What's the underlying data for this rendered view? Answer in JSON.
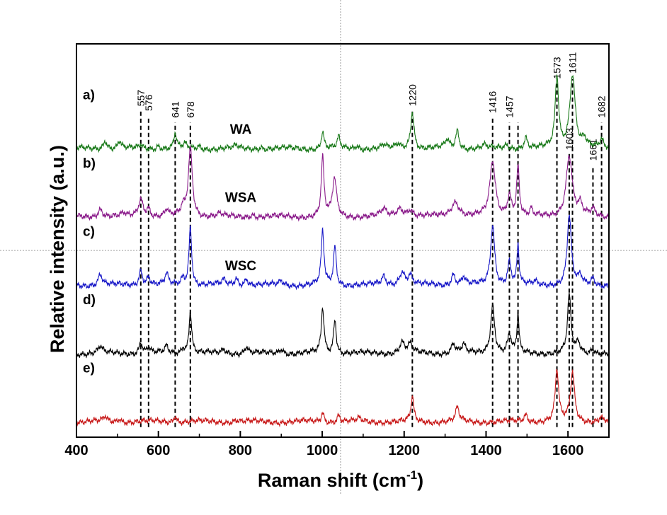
{
  "chart_data": {
    "type": "line",
    "xlabel": "Raman shift (cm",
    "xlabel_sup": "-1",
    "xlabel_end": ")",
    "ylabel": "Relative intensity (a.u.)",
    "xlim": [
      400,
      1700
    ],
    "x_ticks": [
      400,
      600,
      800,
      1000,
      1200,
      1400,
      1600
    ],
    "series": [
      {
        "name": "a)",
        "sample": "WA",
        "color": "#1a7a1a",
        "offset": 4.0,
        "peaks": [
          [
            470,
            0.13,
            5
          ],
          [
            505,
            0.11,
            5
          ],
          [
            557,
            0.05,
            5
          ],
          [
            600,
            0.05,
            5
          ],
          [
            641,
            0.22,
            4
          ],
          [
            665,
            0.06,
            5
          ],
          [
            700,
            0.04,
            5
          ],
          [
            790,
            0.04,
            5
          ],
          [
            850,
            0.03,
            5
          ],
          [
            1001,
            0.25,
            4
          ],
          [
            1040,
            0.16,
            4
          ],
          [
            1085,
            0.05,
            5
          ],
          [
            1150,
            0.05,
            6
          ],
          [
            1185,
            0.06,
            6
          ],
          [
            1220,
            0.55,
            5
          ],
          [
            1305,
            0.12,
            6
          ],
          [
            1330,
            0.26,
            5
          ],
          [
            1395,
            0.05,
            6
          ],
          [
            1450,
            0.05,
            6
          ],
          [
            1497,
            0.16,
            5
          ],
          [
            1573,
            1.05,
            5
          ],
          [
            1611,
            1.08,
            8
          ],
          [
            1640,
            0.12,
            6
          ],
          [
            1682,
            0.12,
            5
          ]
        ]
      },
      {
        "name": "b)",
        "sample": "WSA",
        "color": "#8a1a8a",
        "offset": 3.0,
        "peaks": [
          [
            458,
            0.12,
            7
          ],
          [
            515,
            0.04,
            6
          ],
          [
            557,
            0.26,
            7
          ],
          [
            576,
            0.12,
            5
          ],
          [
            620,
            0.1,
            5
          ],
          [
            660,
            0.12,
            6
          ],
          [
            678,
            1.0,
            6
          ],
          [
            750,
            0.04,
            6
          ],
          [
            830,
            0.04,
            6
          ],
          [
            1001,
            0.85,
            4
          ],
          [
            1030,
            0.55,
            6
          ],
          [
            1150,
            0.1,
            8
          ],
          [
            1190,
            0.12,
            10
          ],
          [
            1215,
            0.1,
            8
          ],
          [
            1325,
            0.22,
            12
          ],
          [
            1416,
            0.8,
            8
          ],
          [
            1457,
            0.3,
            6
          ],
          [
            1478,
            0.72,
            4
          ],
          [
            1510,
            0.1,
            3
          ],
          [
            1603,
            0.9,
            9
          ],
          [
            1630,
            0.15,
            6
          ],
          [
            1661,
            0.1,
            6
          ]
        ]
      },
      {
        "name": "c)",
        "sample": "WSC",
        "color": "#1a1ac8",
        "offset": 2.0,
        "peaks": [
          [
            458,
            0.16,
            6
          ],
          [
            557,
            0.22,
            5
          ],
          [
            576,
            0.12,
            5
          ],
          [
            620,
            0.15,
            5
          ],
          [
            660,
            0.1,
            5
          ],
          [
            678,
            0.86,
            4
          ],
          [
            760,
            0.07,
            6
          ],
          [
            790,
            0.1,
            5
          ],
          [
            815,
            0.1,
            5
          ],
          [
            900,
            0.06,
            6
          ],
          [
            1001,
            0.78,
            4
          ],
          [
            1031,
            0.56,
            4
          ],
          [
            1150,
            0.12,
            6
          ],
          [
            1195,
            0.2,
            8
          ],
          [
            1215,
            0.14,
            6
          ],
          [
            1320,
            0.16,
            6
          ],
          [
            1345,
            0.12,
            5
          ],
          [
            1416,
            0.88,
            6
          ],
          [
            1457,
            0.34,
            5
          ],
          [
            1478,
            0.58,
            3
          ],
          [
            1520,
            0.05,
            5
          ],
          [
            1603,
            1.02,
            6
          ],
          [
            1630,
            0.12,
            5
          ],
          [
            1661,
            0.1,
            5
          ]
        ]
      },
      {
        "name": "d)",
        "sample": "",
        "color": "#000000",
        "offset": 1.0,
        "peaks": [
          [
            458,
            0.1,
            6
          ],
          [
            557,
            0.16,
            5
          ],
          [
            576,
            0.08,
            5
          ],
          [
            620,
            0.1,
            5
          ],
          [
            660,
            0.08,
            5
          ],
          [
            678,
            0.62,
            4
          ],
          [
            760,
            0.06,
            6
          ],
          [
            815,
            0.1,
            5
          ],
          [
            900,
            0.07,
            6
          ],
          [
            1001,
            0.66,
            4
          ],
          [
            1031,
            0.5,
            4
          ],
          [
            1195,
            0.16,
            8
          ],
          [
            1215,
            0.12,
            6
          ],
          [
            1320,
            0.14,
            6
          ],
          [
            1345,
            0.12,
            5
          ],
          [
            1416,
            0.7,
            6
          ],
          [
            1457,
            0.28,
            5
          ],
          [
            1478,
            0.56,
            3
          ],
          [
            1603,
            0.84,
            5
          ],
          [
            1625,
            0.15,
            5
          ],
          [
            1661,
            0.08,
            5
          ]
        ]
      },
      {
        "name": "e)",
        "sample": "",
        "color": "#c81a1a",
        "offset": 0.0,
        "peaks": [
          [
            470,
            0.07,
            5
          ],
          [
            505,
            0.05,
            5
          ],
          [
            641,
            0.1,
            4
          ],
          [
            790,
            0.03,
            6
          ],
          [
            1001,
            0.14,
            4
          ],
          [
            1040,
            0.1,
            4
          ],
          [
            1090,
            0.04,
            6
          ],
          [
            1220,
            0.36,
            4
          ],
          [
            1330,
            0.2,
            5
          ],
          [
            1497,
            0.1,
            5
          ],
          [
            1573,
            0.75,
            5
          ],
          [
            1611,
            0.72,
            6
          ],
          [
            1680,
            0.06,
            5
          ]
        ]
      }
    ],
    "peak_markers": [
      {
        "x": 557,
        "label": "557",
        "y_top": 4.55,
        "label_y": 4.62
      },
      {
        "x": 576,
        "label": "576",
        "y_top": 4.45,
        "label_y": 4.55
      },
      {
        "x": 641,
        "label": "641",
        "y_top": 4.38,
        "label_y": 4.45
      },
      {
        "x": 678,
        "label": "678",
        "y_top": 4.38,
        "label_y": 4.45
      },
      {
        "x": 1220,
        "label": "1220",
        "y_top": 4.55,
        "label_y": 4.62
      },
      {
        "x": 1416,
        "label": "1416",
        "y_top": 4.45,
        "label_y": 4.52
      },
      {
        "x": 1457,
        "label": "1457",
        "y_top": 4.38,
        "label_y": 4.45
      },
      {
        "x": 1478,
        "label": "",
        "y_top": 4.38,
        "label_y": 4.45
      },
      {
        "x": 1573,
        "label": "1573",
        "y_top": 4.95,
        "label_y": 5.02
      },
      {
        "x": 1603,
        "label": "1603",
        "y_top": 3.95,
        "label_y": 3.98
      },
      {
        "x": 1611,
        "label": "1611",
        "y_top": 5.02,
        "label_y": 5.1
      },
      {
        "x": 1661,
        "label": "1661",
        "y_top": 3.75,
        "label_y": 3.82
      },
      {
        "x": 1682,
        "label": "1682",
        "y_top": 4.38,
        "label_y": 4.45
      }
    ],
    "grid": false
  }
}
